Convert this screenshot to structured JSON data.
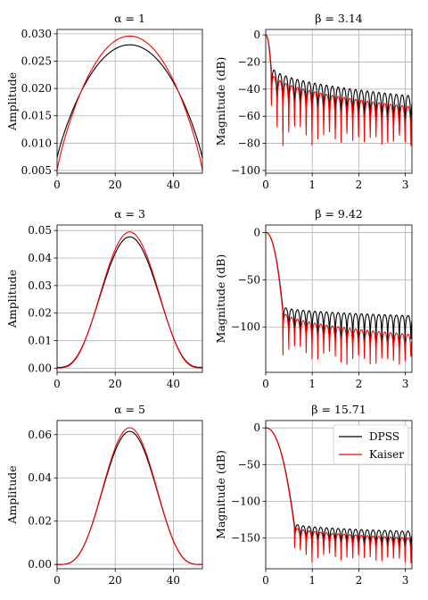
{
  "figure": {
    "background": "#ffffff",
    "grid_color": "#b0b0b0"
  },
  "series_styles": {
    "DPSS": "#000000",
    "Kaiser": "#ff0000"
  },
  "legend": {
    "entries": [
      "DPSS",
      "Kaiser"
    ],
    "placement": "upper-right of bottom-right panel"
  },
  "chart_data": [
    {
      "type": "line",
      "title": "α = 1",
      "xlabel": "",
      "ylabel": "Amplitude",
      "xlim": [
        0,
        50
      ],
      "ylim": [
        0.0045,
        0.0308
      ],
      "grid": true,
      "xticks": [
        0,
        20,
        40
      ],
      "yticks": [
        0.005,
        0.01,
        0.015,
        0.02,
        0.025,
        0.03
      ],
      "ytick_labels": [
        "0.005",
        "0.010",
        "0.015",
        "0.020",
        "0.025",
        "0.030"
      ],
      "series": [
        {
          "name": "DPSS",
          "model": "window",
          "center": 25,
          "peak": 0.028,
          "edge": 0.0073
        },
        {
          "name": "Kaiser",
          "model": "window",
          "center": 25,
          "peak": 0.0296,
          "edge": 0.0051
        }
      ]
    },
    {
      "type": "line",
      "title": "β = 3.14",
      "xlabel": "",
      "ylabel": "Magnitude (dB)",
      "xlim": [
        0,
        3.1416
      ],
      "ylim": [
        -102,
        4
      ],
      "grid": true,
      "xticks": [
        0,
        1,
        2,
        3
      ],
      "yticks": [
        0,
        -20,
        -40,
        -60,
        -80,
        -100
      ],
      "ytick_labels": [
        "0",
        "−20",
        "−40",
        "−60",
        "−80",
        "−100"
      ],
      "series": [
        {
          "name": "DPSS",
          "model": "spectrum",
          "mainlobe": 0.12,
          "sl_top": -22,
          "sl_bottom": -45,
          "null_spacing": 0.125,
          "null_depth": -62
        },
        {
          "name": "Kaiser",
          "model": "spectrum",
          "mainlobe": 0.12,
          "sl_top": -26,
          "sl_bottom": -53,
          "null_spacing": 0.125,
          "null_depth": -72
        }
      ]
    },
    {
      "type": "line",
      "title": "α = 3",
      "xlabel": "",
      "ylabel": "Amplitude",
      "xlim": [
        0,
        50
      ],
      "ylim": [
        -0.0015,
        0.052
      ],
      "grid": true,
      "xticks": [
        0,
        20,
        40
      ],
      "yticks": [
        0.0,
        0.01,
        0.02,
        0.03,
        0.04,
        0.05
      ],
      "ytick_labels": [
        "0.00",
        "0.01",
        "0.02",
        "0.03",
        "0.04",
        "0.05"
      ],
      "series": [
        {
          "name": "DPSS",
          "model": "window",
          "center": 25,
          "peak": 0.0477,
          "edge": 0.0003
        },
        {
          "name": "Kaiser",
          "model": "window",
          "center": 25,
          "peak": 0.0495,
          "edge": 0.0001
        }
      ]
    },
    {
      "type": "line",
      "title": "β = 9.42",
      "xlabel": "",
      "ylabel": "Magnitude (dB)",
      "xlim": [
        0,
        3.1416
      ],
      "ylim": [
        -148,
        8
      ],
      "grid": true,
      "xticks": [
        0,
        1,
        2,
        3
      ],
      "yticks": [
        0,
        -50,
        -100
      ],
      "ytick_labels": [
        "0",
        "−50",
        "−100"
      ],
      "series": [
        {
          "name": "DPSS",
          "model": "spectrum",
          "mainlobe": 0.37,
          "sl_top": -78,
          "sl_bottom": -88,
          "null_spacing": 0.125,
          "null_depth": -112
        },
        {
          "name": "Kaiser",
          "model": "spectrum",
          "mainlobe": 0.37,
          "sl_top": -82,
          "sl_bottom": -108,
          "null_spacing": 0.125,
          "null_depth": -130
        }
      ]
    },
    {
      "type": "line",
      "title": "α = 5",
      "xlabel": "",
      "ylabel": "Amplitude",
      "xlim": [
        0,
        50
      ],
      "ylim": [
        -0.002,
        0.0665
      ],
      "grid": true,
      "xticks": [
        0,
        20,
        40
      ],
      "yticks": [
        0.0,
        0.02,
        0.04,
        0.06
      ],
      "ytick_labels": [
        "0.00",
        "0.02",
        "0.04",
        "0.06"
      ],
      "series": [
        {
          "name": "DPSS",
          "model": "window",
          "center": 25,
          "peak": 0.0615,
          "edge": 0.0
        },
        {
          "name": "Kaiser",
          "model": "window",
          "center": 25,
          "peak": 0.0632,
          "edge": 0.0
        }
      ]
    },
    {
      "type": "line",
      "title": "β = 15.71",
      "xlabel": "",
      "ylabel": "Magnitude (dB)",
      "xlim": [
        0,
        3.1416
      ],
      "ylim": [
        -192,
        10
      ],
      "grid": true,
      "xticks": [
        0,
        1,
        2,
        3
      ],
      "yticks": [
        0,
        -50,
        -100,
        -150
      ],
      "ytick_labels": [
        "0",
        "−50",
        "−100",
        "−150"
      ],
      "series": [
        {
          "name": "DPSS",
          "model": "spectrum",
          "mainlobe": 0.62,
          "sl_top": -130,
          "sl_bottom": -141,
          "null_spacing": 0.125,
          "null_depth": -165
        },
        {
          "name": "Kaiser",
          "model": "spectrum",
          "mainlobe": 0.62,
          "sl_top": -134,
          "sl_bottom": -150,
          "null_spacing": 0.125,
          "null_depth": -175
        }
      ]
    }
  ]
}
